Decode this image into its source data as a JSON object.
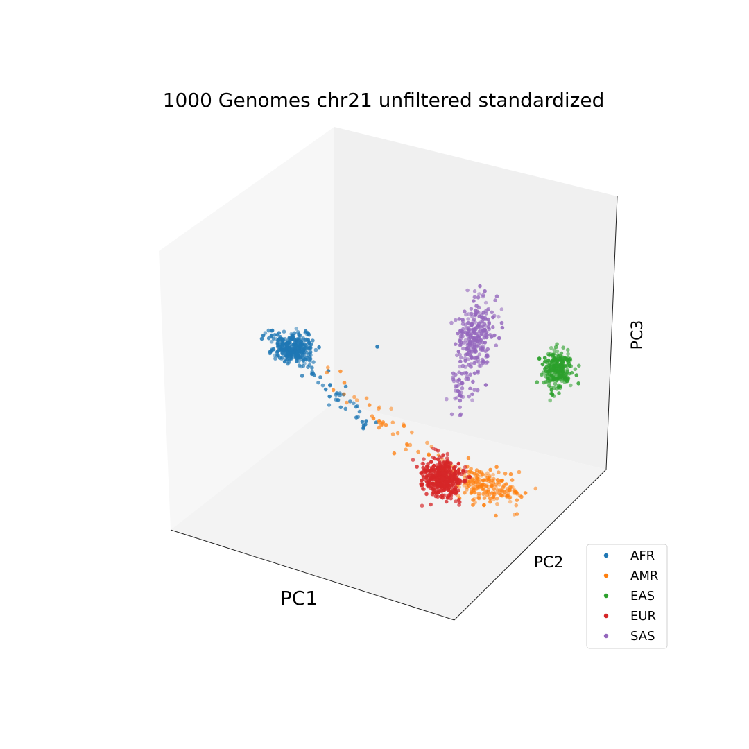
{
  "chart_data": {
    "type": "scatter",
    "projection": "3d",
    "title": "1000 Genomes chr21 unfiltered standardized",
    "axes": {
      "x": "PC1",
      "y": "PC2",
      "z": "PC3"
    },
    "ticks": "hidden",
    "grid": false,
    "legend": {
      "placement": "bottom-right"
    },
    "series": [
      {
        "name": "AFR",
        "color": "#1f77b4"
      },
      {
        "name": "AMR",
        "color": "#ff7f0e"
      },
      {
        "name": "EAS",
        "color": "#2ca02c"
      },
      {
        "name": "EUR",
        "color": "#d62728"
      },
      {
        "name": "SAS",
        "color": "#9467bd"
      }
    ]
  }
}
